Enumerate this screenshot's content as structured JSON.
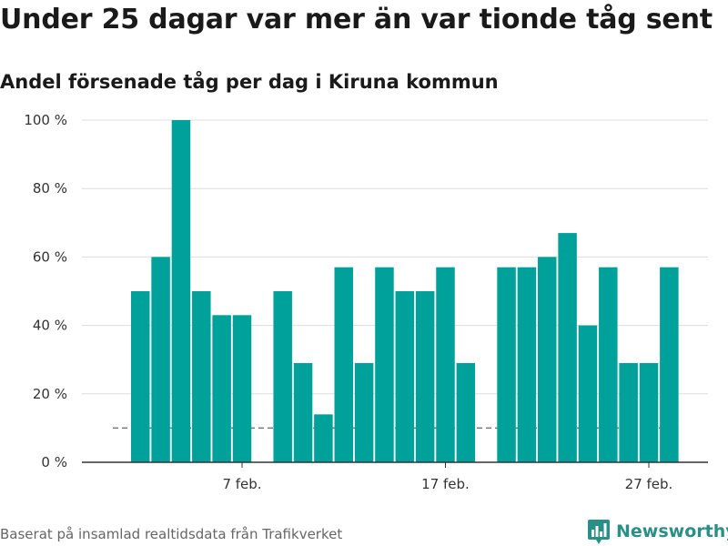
{
  "title": "Under 25 dagar var mer än var tionde tåg sent",
  "subtitle": "Andel försenade tåg per dag i Kiruna kommun",
  "source": "Baserat på insamlad realtidsdata från Trafikverket",
  "brand": {
    "name": "Newsworthy",
    "logo_icon": "bar-chart-logo-icon"
  },
  "colors": {
    "bar": "#00a19a",
    "grid": "#dddddd",
    "axis": "#333333",
    "reference": "#777777",
    "brand": "#2a8f86"
  },
  "chart_data": {
    "type": "bar",
    "x_dates": [
      "2 feb.",
      "3 feb.",
      "4 feb.",
      "5 feb.",
      "6 feb.",
      "7 feb.",
      "8 feb.",
      "9 feb.",
      "10 feb.",
      "11 feb.",
      "12 feb.",
      "13 feb.",
      "14 feb.",
      "15 feb.",
      "16 feb.",
      "17 feb.",
      "18 feb.",
      "19 feb.",
      "20 feb.",
      "21 feb.",
      "22 feb.",
      "23 feb.",
      "24 feb.",
      "25 feb.",
      "26 feb.",
      "27 feb.",
      "28 feb."
    ],
    "values": [
      50,
      60,
      100,
      50,
      43,
      43,
      null,
      50,
      29,
      14,
      57,
      29,
      57,
      50,
      50,
      57,
      29,
      null,
      57,
      57,
      60,
      67,
      40,
      57,
      29,
      29,
      57
    ],
    "x_ticks": [
      {
        "date": "7 feb.",
        "label": "7 feb."
      },
      {
        "date": "17 feb.",
        "label": "17 feb."
      },
      {
        "date": "27 feb.",
        "label": "27 feb."
      }
    ],
    "y_ticks": [
      {
        "value": 0,
        "label": "0 %"
      },
      {
        "value": 20,
        "label": "20 %"
      },
      {
        "value": 40,
        "label": "40 %"
      },
      {
        "value": 60,
        "label": "60 %"
      },
      {
        "value": 80,
        "label": "80 %"
      },
      {
        "value": 100,
        "label": "100 %"
      }
    ],
    "ylim": [
      0,
      100
    ],
    "reference_line": {
      "value": 10,
      "style": "dashed"
    },
    "grid": true,
    "xlabel": "",
    "ylabel": ""
  }
}
